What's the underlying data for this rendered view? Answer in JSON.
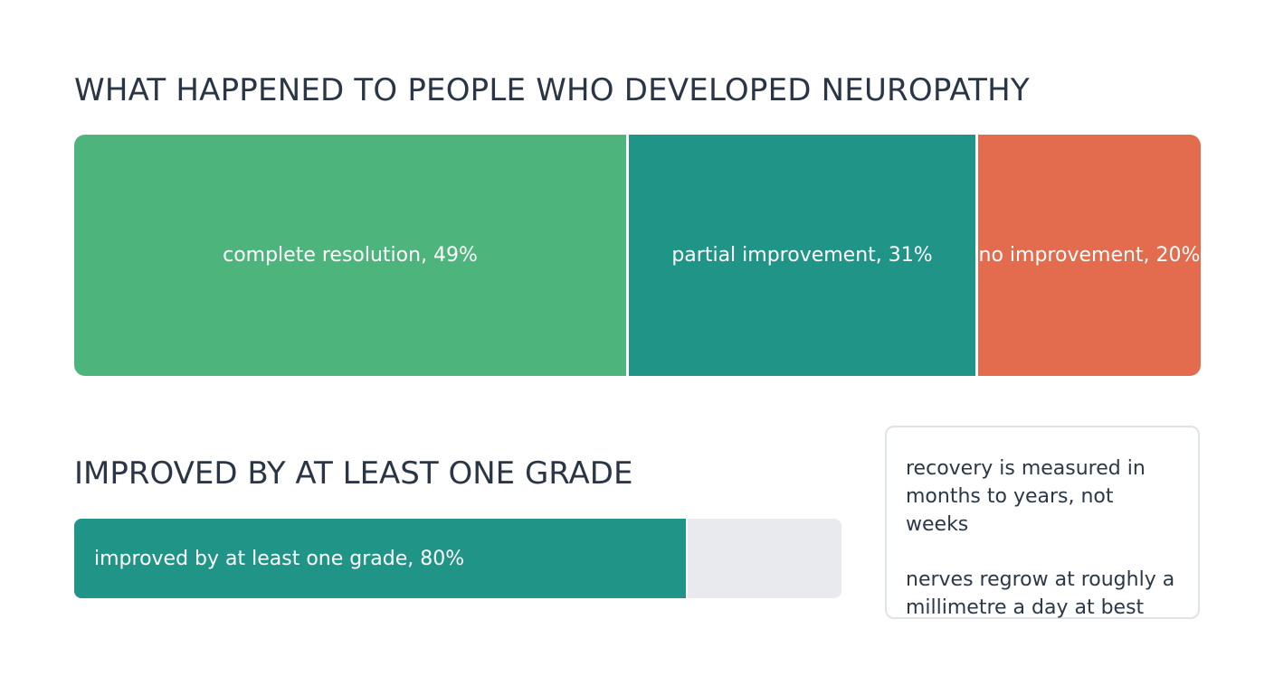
{
  "chart_data": [
    {
      "type": "bar",
      "subtype": "100%-stacked-horizontal",
      "title": "WHAT HAPPENED TO PEOPLE WHO DEVELOPED NEUROPATHY",
      "unit": "%",
      "categories": [
        "complete resolution",
        "partial improvement",
        "no improvement"
      ],
      "values": [
        49,
        31,
        20
      ],
      "labels": [
        "complete resolution, 49%",
        "partial improvement, 31%",
        "no improvement, 20%"
      ],
      "colors": [
        "#4db57c",
        "#209487",
        "#e36b4e"
      ],
      "legend": "none",
      "grid": false
    },
    {
      "type": "bar",
      "subtype": "progress",
      "title": "IMPROVED BY AT LEAST ONE GRADE",
      "unit": "%",
      "categories": [
        "improved by at least one grade"
      ],
      "values": [
        80
      ],
      "max": 100,
      "label": "improved by at least one grade, 80%",
      "colors": {
        "fill": "#209487",
        "track": "#e9eaee"
      },
      "legend": "none",
      "grid": false
    }
  ],
  "notes": [
    "recovery is measured in months to years, not weeks",
    "nerves regrow at roughly a millimetre a day at best"
  ]
}
